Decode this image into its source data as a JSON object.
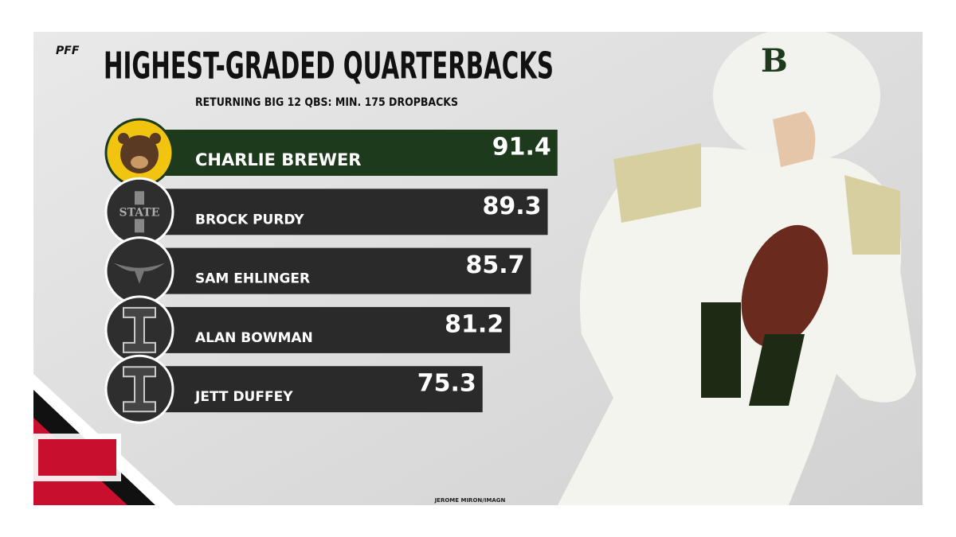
{
  "chart_data": {
    "type": "bar",
    "orientation": "horizontal",
    "logo": "PFF",
    "title": "HIGHEST-GRADED QUARTERBACKS",
    "subtitle": "RETURNING BIG 12 QBS: MIN. 175 DROPBACKS",
    "categories": [
      "CHARLIE BREWER",
      "BROCK PURDY",
      "SAM EHLINGER",
      "ALAN BOWMAN",
      "JETT DUFFEY"
    ],
    "values": [
      91.4,
      89.3,
      85.7,
      81.2,
      75.3
    ],
    "colors": [
      "#1d3a1c",
      "#2a2a2a",
      "#2a2a2a",
      "#2a2a2a",
      "#2a2a2a"
    ],
    "credit": "JEROME MIRON/IMAGN"
  },
  "badges": {
    "iowa_state": "STATE"
  }
}
